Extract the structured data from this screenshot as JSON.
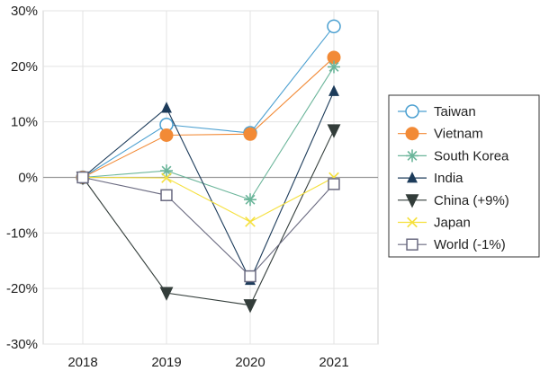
{
  "chart_data": {
    "type": "line",
    "x": [
      "2018",
      "2019",
      "2020",
      "2021"
    ],
    "ylim": [
      -30,
      30
    ],
    "yticks": [
      -30,
      -20,
      -10,
      0,
      10,
      20,
      30
    ],
    "ytick_labels": [
      "-30%",
      "-20%",
      "-10%",
      "0%",
      "10%",
      "20%",
      "30%"
    ],
    "grid": true,
    "legend_position": "right",
    "series": [
      {
        "name": "Taiwan",
        "values": [
          0,
          9.5,
          8.0,
          27.2
        ],
        "color": "#4a9fd0",
        "marker": "circle-open"
      },
      {
        "name": "Vietnam",
        "values": [
          0,
          7.6,
          7.8,
          21.6
        ],
        "color": "#f28a36",
        "marker": "circle-filled"
      },
      {
        "name": "South Korea",
        "values": [
          0,
          1.2,
          -4.0,
          19.9
        ],
        "color": "#6bb59a",
        "marker": "asterisk"
      },
      {
        "name": "India",
        "values": [
          0,
          12.5,
          -18.5,
          15.5
        ],
        "color": "#1c3b5a",
        "marker": "triangle-up"
      },
      {
        "name": "China (+9%)",
        "values": [
          0,
          -20.8,
          -23.0,
          8.5
        ],
        "color": "#333d3a",
        "marker": "triangle-down"
      },
      {
        "name": "Japan",
        "values": [
          0,
          -0.1,
          -8.0,
          0.0
        ],
        "color": "#f5e03c",
        "marker": "x"
      },
      {
        "name": "World (-1%)",
        "values": [
          0,
          -3.2,
          -17.8,
          -1.2
        ],
        "color": "#6a6a80",
        "marker": "square-open"
      }
    ]
  }
}
